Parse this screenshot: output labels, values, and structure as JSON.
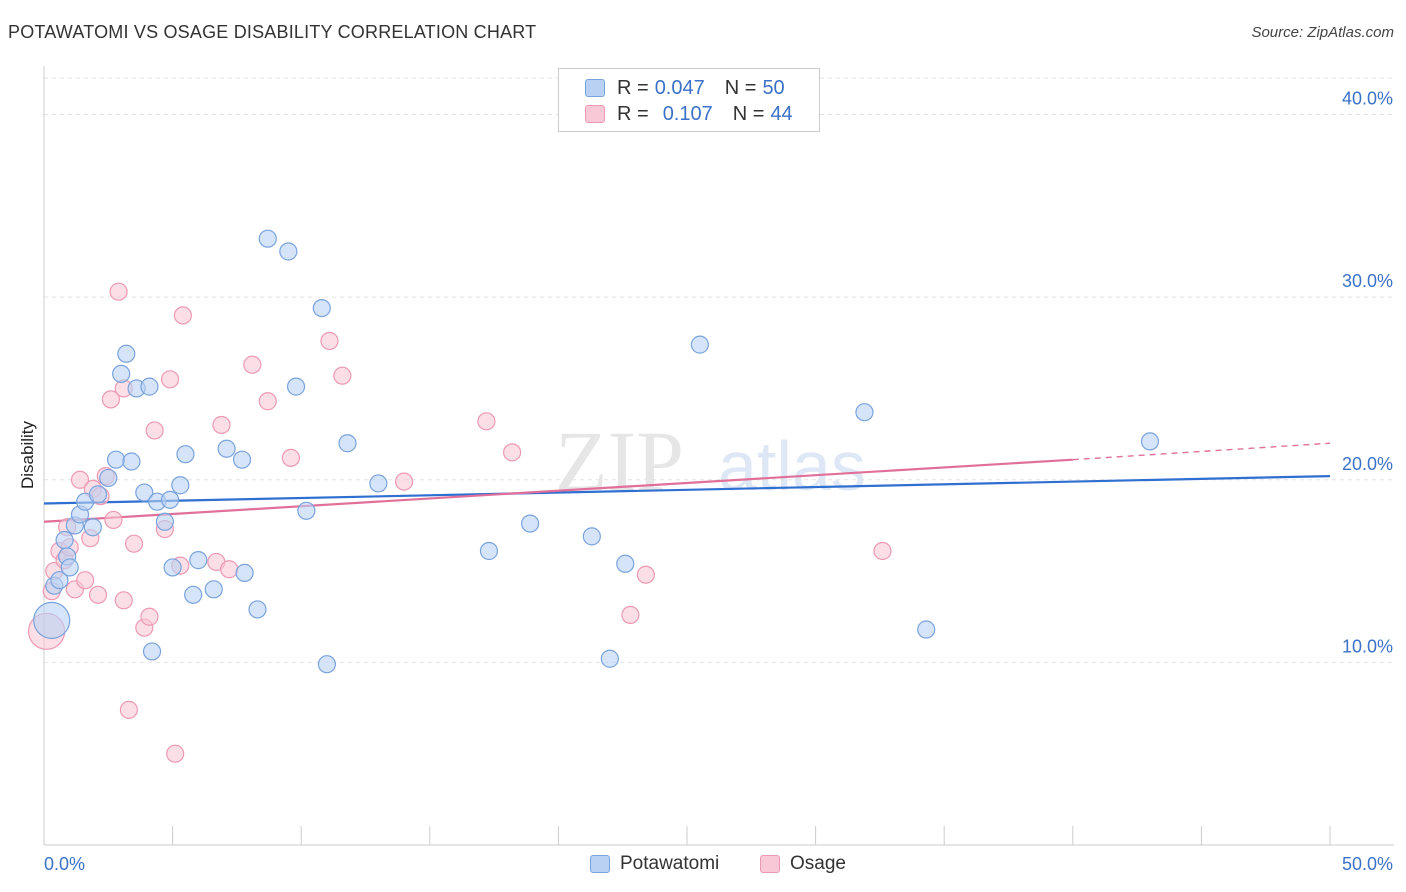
{
  "title": "POTAWATOMI VS OSAGE DISABILITY CORRELATION CHART",
  "source": "Source: ZipAtlas.com",
  "legend_top": [
    {
      "r_label": "R =",
      "r_value": "0.047",
      "n_label": "N =",
      "n_value": "50"
    },
    {
      "r_label": "R =",
      "r_value": "0.107",
      "n_label": "N =",
      "n_value": "44"
    }
  ],
  "colors": {
    "potawatomi_fill": "#b9d2f4",
    "potawatomi_stroke": "#7aa3dc",
    "potawatomi_line": "#2f6fd0",
    "osage_fill": "#f8c8d6",
    "osage_stroke": "#ec9ab3",
    "osage_line": "#e0709a",
    "axis_text": "#3b72c8",
    "grid": "#e3e3e3"
  },
  "chart_data": {
    "type": "scatter",
    "title": "POTAWATOMI VS OSAGE DISABILITY CORRELATION CHART",
    "xlabel": "",
    "ylabel": "Disability",
    "xlim": [
      0,
      50
    ],
    "ylim": [
      0,
      42
    ],
    "x_tick_labels": [
      "0.0%",
      "50.0%"
    ],
    "y_ticks": [
      10,
      20,
      30,
      40
    ],
    "y_tick_labels": [
      "10.0%",
      "20.0%",
      "30.0%",
      "40.0%"
    ],
    "grid": true,
    "legend_position": "top-center",
    "watermark": "ZIPatlas",
    "series": [
      {
        "name": "Potawatomi",
        "trend": [
          [
            0,
            18.7
          ],
          [
            50,
            20.2
          ]
        ],
        "points": [
          [
            0.3,
            12.3
          ],
          [
            0.4,
            14.2
          ],
          [
            0.6,
            14.5
          ],
          [
            0.8,
            16.7
          ],
          [
            0.9,
            15.8
          ],
          [
            1.0,
            15.2
          ],
          [
            1.2,
            17.5
          ],
          [
            1.4,
            18.1
          ],
          [
            1.6,
            18.8
          ],
          [
            1.9,
            17.4
          ],
          [
            2.1,
            19.2
          ],
          [
            2.5,
            20.1
          ],
          [
            2.8,
            21.1
          ],
          [
            3.0,
            25.8
          ],
          [
            3.2,
            26.9
          ],
          [
            3.4,
            21.0
          ],
          [
            3.6,
            25.0
          ],
          [
            3.9,
            19.3
          ],
          [
            4.1,
            25.1
          ],
          [
            4.2,
            10.6
          ],
          [
            4.4,
            18.8
          ],
          [
            4.7,
            17.7
          ],
          [
            4.9,
            18.9
          ],
          [
            5.0,
            15.2
          ],
          [
            5.3,
            19.7
          ],
          [
            5.5,
            21.4
          ],
          [
            5.8,
            13.7
          ],
          [
            6.0,
            15.6
          ],
          [
            6.6,
            14.0
          ],
          [
            7.1,
            21.7
          ],
          [
            7.7,
            21.1
          ],
          [
            7.8,
            14.9
          ],
          [
            8.3,
            12.9
          ],
          [
            8.7,
            33.2
          ],
          [
            9.5,
            32.5
          ],
          [
            9.8,
            25.1
          ],
          [
            10.2,
            18.3
          ],
          [
            10.8,
            29.4
          ],
          [
            11.0,
            9.9
          ],
          [
            11.8,
            22.0
          ],
          [
            13.0,
            19.8
          ],
          [
            17.3,
            16.1
          ],
          [
            18.9,
            17.6
          ],
          [
            21.3,
            16.9
          ],
          [
            22.0,
            10.2
          ],
          [
            22.6,
            15.4
          ],
          [
            25.5,
            27.4
          ],
          [
            31.9,
            23.7
          ],
          [
            34.3,
            11.8
          ],
          [
            43.0,
            22.1
          ]
        ]
      },
      {
        "name": "Osage",
        "trend": [
          [
            0,
            17.7
          ],
          [
            40,
            21.1
          ]
        ],
        "trend_dashed": [
          [
            40,
            21.1
          ],
          [
            50,
            22.0
          ]
        ],
        "points": [
          [
            0.1,
            11.7
          ],
          [
            0.3,
            13.9
          ],
          [
            0.4,
            15.0
          ],
          [
            0.6,
            16.1
          ],
          [
            0.8,
            15.6
          ],
          [
            0.9,
            17.4
          ],
          [
            1.0,
            16.3
          ],
          [
            1.2,
            14.0
          ],
          [
            1.4,
            20.0
          ],
          [
            1.6,
            14.5
          ],
          [
            1.8,
            16.8
          ],
          [
            1.9,
            19.5
          ],
          [
            2.1,
            13.7
          ],
          [
            2.2,
            19.1
          ],
          [
            2.4,
            20.2
          ],
          [
            2.6,
            24.4
          ],
          [
            2.7,
            17.8
          ],
          [
            2.9,
            30.3
          ],
          [
            3.1,
            25.0
          ],
          [
            3.1,
            13.4
          ],
          [
            3.3,
            7.4
          ],
          [
            3.5,
            16.5
          ],
          [
            3.9,
            11.9
          ],
          [
            4.1,
            12.5
          ],
          [
            4.3,
            22.7
          ],
          [
            4.7,
            17.3
          ],
          [
            4.9,
            25.5
          ],
          [
            5.1,
            5.0
          ],
          [
            5.3,
            15.3
          ],
          [
            5.4,
            29.0
          ],
          [
            6.7,
            15.5
          ],
          [
            6.9,
            23.0
          ],
          [
            7.2,
            15.1
          ],
          [
            8.1,
            26.3
          ],
          [
            8.7,
            24.3
          ],
          [
            9.6,
            21.2
          ],
          [
            11.1,
            27.6
          ],
          [
            11.6,
            25.7
          ],
          [
            14.0,
            19.9
          ],
          [
            17.2,
            23.2
          ],
          [
            18.2,
            21.5
          ],
          [
            22.8,
            12.6
          ],
          [
            23.4,
            14.8
          ],
          [
            32.6,
            16.1
          ]
        ]
      }
    ]
  },
  "bottom_legend": [
    {
      "label": "Potawatomi"
    },
    {
      "label": "Osage"
    }
  ]
}
